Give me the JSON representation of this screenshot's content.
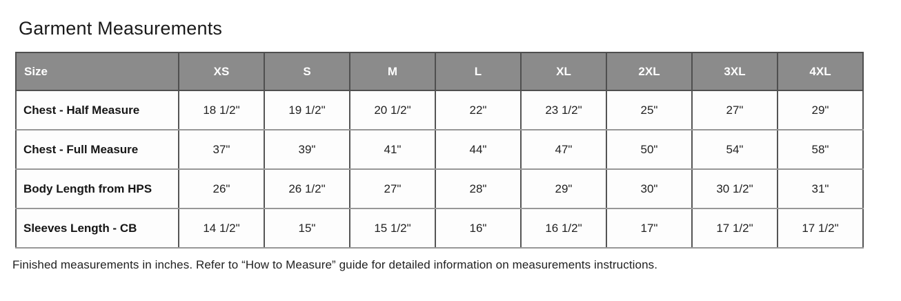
{
  "page": {
    "title": "Garment Measurements",
    "footnote": "Finished measurements in inches. Refer to “How to Measure” guide for detailed information on measurements instructions."
  },
  "table": {
    "corner_label": "Size",
    "size_columns": [
      "XS",
      "S",
      "M",
      "L",
      "XL",
      "2XL",
      "3XL",
      "4XL"
    ],
    "rows": [
      {
        "label": "Chest - Half Measure",
        "values": [
          "18 1/2\"",
          "19 1/2\"",
          "20 1/2\"",
          "22\"",
          "23 1/2\"",
          "25\"",
          "27\"",
          "29\""
        ]
      },
      {
        "label": "Chest - Full Measure",
        "values": [
          "37\"",
          "39\"",
          "41\"",
          "44\"",
          "47\"",
          "50\"",
          "54\"",
          "58\""
        ]
      },
      {
        "label": "Body Length from HPS",
        "values": [
          "26\"",
          "26 1/2\"",
          "27\"",
          "28\"",
          "29\"",
          "30\"",
          "30 1/2\"",
          "31\""
        ]
      },
      {
        "label": "Sleeves Length - CB",
        "values": [
          "14 1/2\"",
          "15\"",
          "15 1/2\"",
          "16\"",
          "16 1/2\"",
          "17\"",
          "17 1/2\"",
          "17 1/2\""
        ]
      }
    ]
  },
  "colors": {
    "header_background": "#8b8b8b",
    "header_text": "#ffffff",
    "border_dark": "#4f4f4f",
    "border_light": "#979797",
    "body_text": "#222222"
  }
}
